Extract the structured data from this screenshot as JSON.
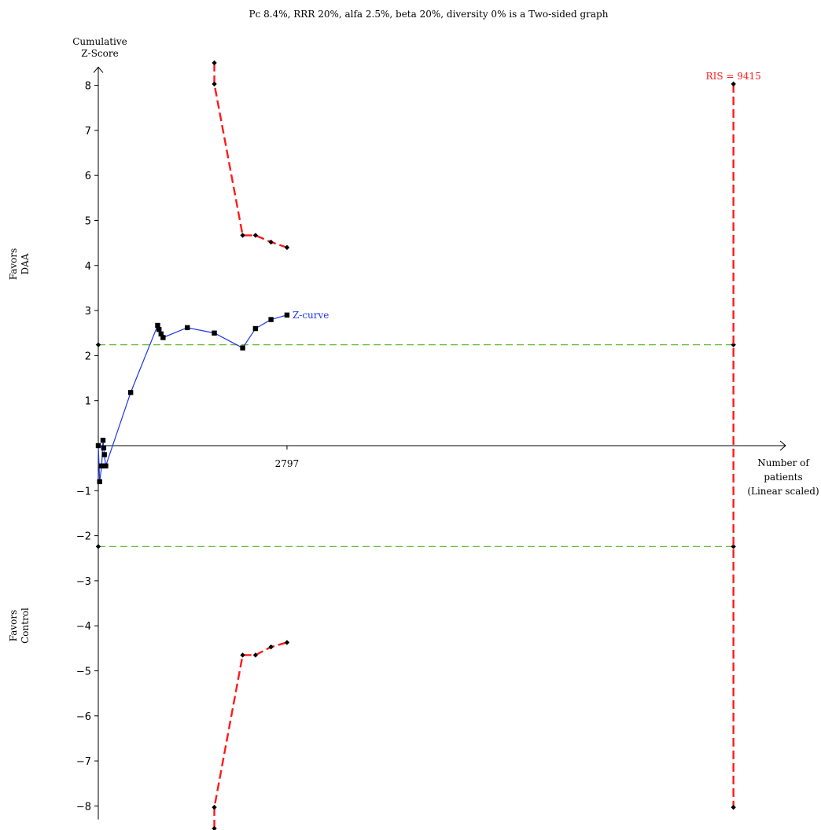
{
  "chart_data": {
    "type": "line",
    "title": "Pc 8.4%, RRR 20%, alfa 2.5%, beta 20%, diversity 0% is a Two-sided graph",
    "ylabel_lines": [
      "Cumulative",
      "Z-Score"
    ],
    "xlabel_lines": [
      "Number of",
      "patients",
      "(Linear scaled)"
    ],
    "side_label_top": [
      "Favors",
      "DAA"
    ],
    "side_label_bottom": [
      "Favors",
      "Control"
    ],
    "ylim": [
      -8.3,
      8.3
    ],
    "xlim": [
      0,
      10200
    ],
    "y_ticks": [
      8,
      7,
      6,
      5,
      4,
      3,
      2,
      1,
      -1,
      -2,
      -3,
      -4,
      -5,
      -6,
      -7,
      -8
    ],
    "x_ticks": [
      {
        "value": 2797,
        "label": "2797"
      }
    ],
    "colors": {
      "zcurve": "#1f35e8",
      "boundary": "#ff1a1a",
      "conventional": "#66bb33",
      "axis": "#000000"
    },
    "zcurve": {
      "label": "Z-curve",
      "points": [
        [
          0,
          0.0
        ],
        [
          20,
          -0.8
        ],
        [
          50,
          -0.45
        ],
        [
          70,
          0.12
        ],
        [
          80,
          -0.05
        ],
        [
          90,
          -0.2
        ],
        [
          110,
          -0.45
        ],
        [
          480,
          1.18
        ],
        [
          880,
          2.67
        ],
        [
          900,
          2.58
        ],
        [
          930,
          2.48
        ],
        [
          960,
          2.4
        ],
        [
          1320,
          2.62
        ],
        [
          1720,
          2.5
        ],
        [
          2140,
          2.17
        ],
        [
          2330,
          2.6
        ],
        [
          2560,
          2.8
        ],
        [
          2797,
          2.9
        ]
      ]
    },
    "monitoring_boundary_upper": [
      [
        1720,
        8.5
      ],
      [
        1720,
        8.03
      ],
      [
        2140,
        4.67
      ],
      [
        2330,
        4.67
      ],
      [
        2560,
        4.52
      ],
      [
        2797,
        4.4
      ]
    ],
    "monitoring_boundary_lower": [
      [
        1720,
        -8.5
      ],
      [
        1720,
        -8.03
      ],
      [
        2140,
        -4.65
      ],
      [
        2330,
        -4.65
      ],
      [
        2560,
        -4.47
      ],
      [
        2797,
        -4.37
      ]
    ],
    "conventional_boundary": 2.24,
    "ris": {
      "value": 9415,
      "label": "RIS = 9415",
      "z_extent": [
        -8.03,
        8.03
      ]
    }
  }
}
